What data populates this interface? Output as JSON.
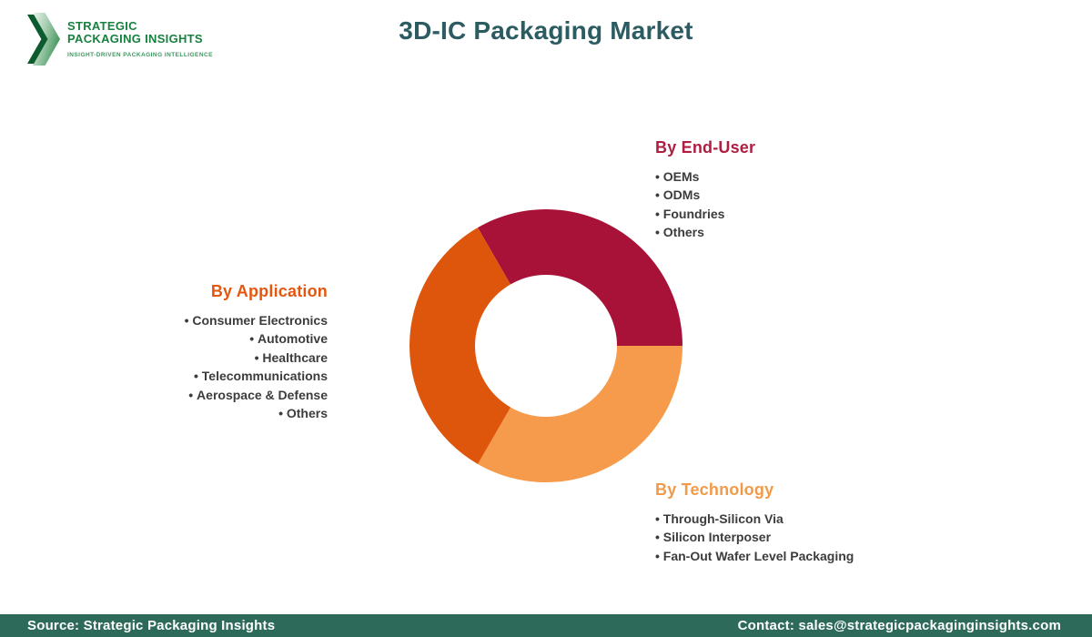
{
  "logo": {
    "name_line1": "STRATEGIC",
    "name_line2": "PACKAGING INSIGHTS",
    "tagline": "INSIGHT-DRIVEN PACKAGING INTELLIGENCE"
  },
  "title": "3D-IC Packaging Market",
  "groups": {
    "end_user": {
      "label": "By End-User",
      "color": "#af1e41",
      "items": [
        "OEMs",
        "ODMs",
        "Foundries",
        "Others"
      ]
    },
    "application": {
      "label": "By Application",
      "color": "#e5560e",
      "items": [
        "Consumer Electronics",
        "Automotive",
        "Healthcare",
        "Telecommunications",
        "Aerospace & Defense",
        "Others"
      ]
    },
    "technology": {
      "label": "By Technology",
      "color": "#f29a48",
      "items": [
        "Through-Silicon Via",
        "Silicon Interposer",
        "Fan-Out Wafer Level Packaging"
      ]
    }
  },
  "chart_data": {
    "type": "pie",
    "subtype": "donut",
    "title": "3D-IC Packaging Market segment wheel",
    "start_angle_deg": -30,
    "direction": "clockwise",
    "inner_radius_ratio": 0.52,
    "segments": [
      {
        "label": "By End-User",
        "value": 33.33,
        "color": "#a81238"
      },
      {
        "label": "By Technology",
        "value": 33.33,
        "color": "#f59b4b"
      },
      {
        "label": "By Application",
        "value": 33.34,
        "color": "#de550c"
      }
    ],
    "legend_position": "around-chart",
    "data_labels": false
  },
  "footer": {
    "source": "Source: Strategic Packaging Insights",
    "contact": "Contact: sales@strategicpackaginginsights.com",
    "background": "#2d6a5a"
  },
  "colors": {
    "title": "#2c5b62",
    "body_text": "#3c3c3c",
    "logo_green": "#17813f"
  }
}
